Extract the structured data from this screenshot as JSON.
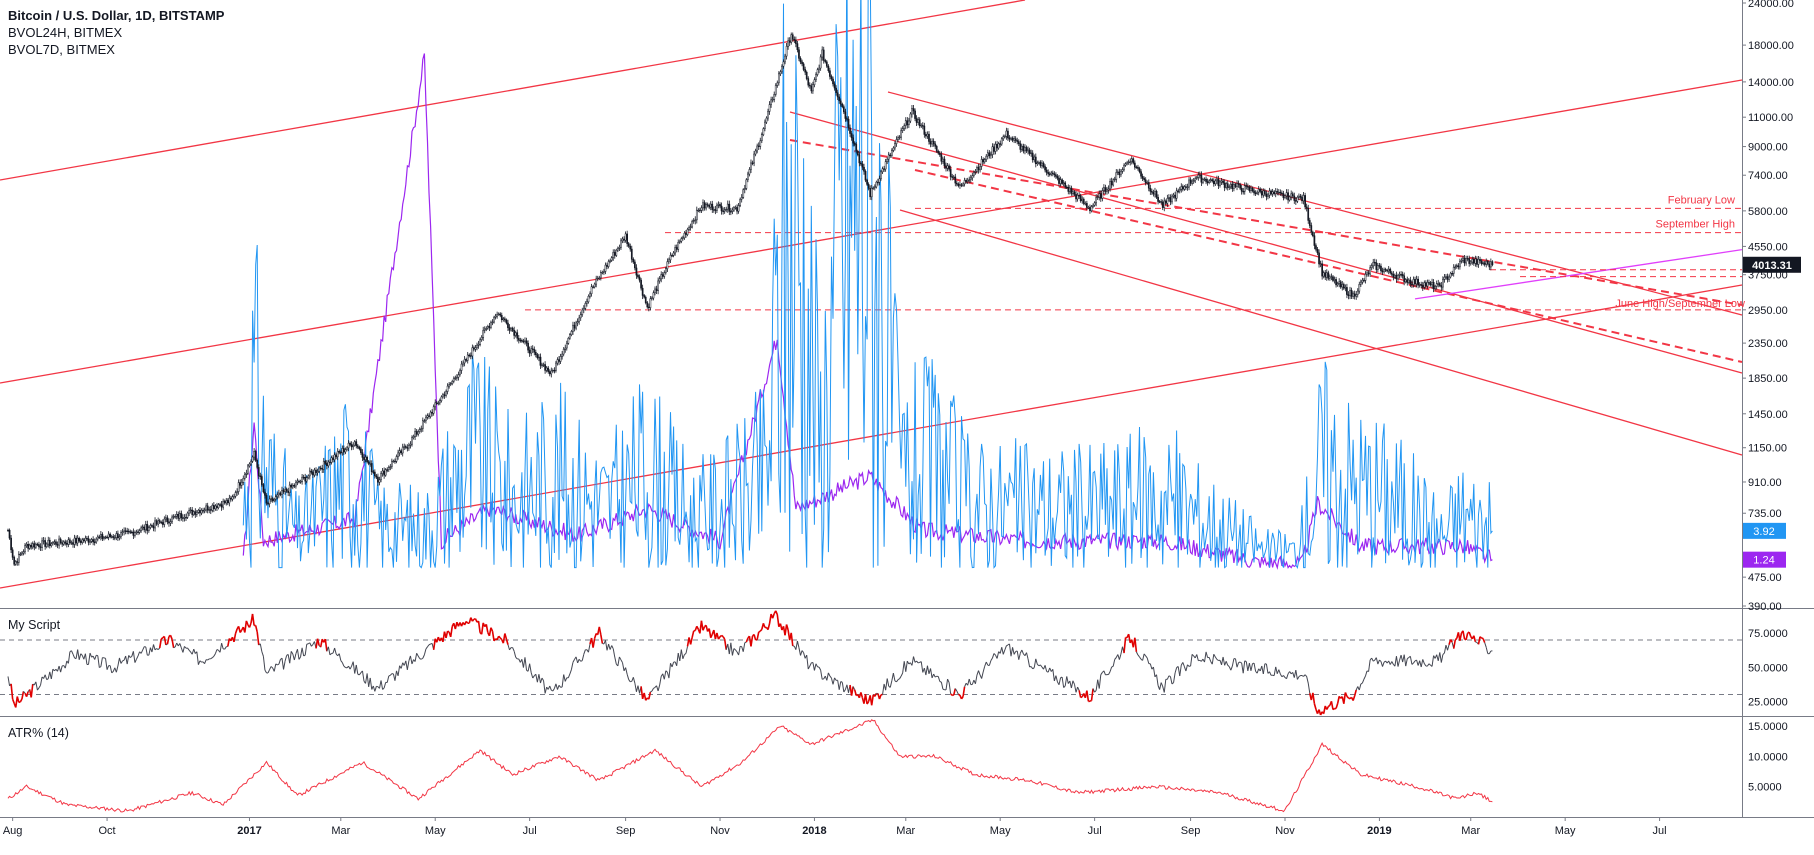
{
  "legend": {
    "main": "Bitcoin / U.S. Dollar, 1D, BITSTAMP",
    "line2": "BVOL24H, BITMEX",
    "line3": "BVOL7D, BITMEX"
  },
  "panes": {
    "script_title": "My Script",
    "atr_title": "ATR% (14)"
  },
  "colors": {
    "candle": "#131722",
    "channel": "#f23645",
    "bvol24h": "#2196f3",
    "bvol7d": "#9c27f0",
    "script": "#434651",
    "script_hot": "#e00000",
    "atr": "#f23645",
    "trend_magenta": "#e040fb"
  },
  "chart_data": [
    {
      "type": "candlestick",
      "pane": "price",
      "scale": "log",
      "ylim": [
        390,
        24000
      ],
      "y_ticks": [
        "24000.00",
        "18000.00",
        "14000.00",
        "11000.00",
        "9000.00",
        "7400.00",
        "5800.00",
        "4550.00",
        "3750.00",
        "2950.00",
        "2350.00",
        "1850.00",
        "1450.00",
        "1150.00",
        "910.00",
        "735.00",
        "475.00",
        "390.00"
      ],
      "x_ticks": [
        "Aug",
        "Oct",
        "2017",
        "Mar",
        "May",
        "Jul",
        "Sep",
        "Nov",
        "2018",
        "Mar",
        "May",
        "Jul",
        "Sep",
        "Nov",
        "2019",
        "Mar",
        "May",
        "Jul"
      ],
      "last_price_label": "4013.31",
      "series_keypoints": [
        {
          "x": "2016-07-29",
          "y": 655
        },
        {
          "x": "2016-08-02",
          "y": 520
        },
        {
          "x": "2016-08-10",
          "y": 590
        },
        {
          "x": "2016-09-15",
          "y": 610
        },
        {
          "x": "2016-10-15",
          "y": 640
        },
        {
          "x": "2016-11-20",
          "y": 730
        },
        {
          "x": "2016-12-20",
          "y": 800
        },
        {
          "x": "2017-01-04",
          "y": 1100
        },
        {
          "x": "2017-01-12",
          "y": 780
        },
        {
          "x": "2017-02-15",
          "y": 1000
        },
        {
          "x": "2017-03-10",
          "y": 1200
        },
        {
          "x": "2017-03-25",
          "y": 930
        },
        {
          "x": "2017-04-15",
          "y": 1200
        },
        {
          "x": "2017-05-10",
          "y": 1750
        },
        {
          "x": "2017-06-10",
          "y": 2900
        },
        {
          "x": "2017-07-15",
          "y": 1900
        },
        {
          "x": "2017-08-10",
          "y": 3400
        },
        {
          "x": "2017-09-01",
          "y": 4900
        },
        {
          "x": "2017-09-15",
          "y": 3000
        },
        {
          "x": "2017-10-01",
          "y": 4300
        },
        {
          "x": "2017-10-20",
          "y": 6000
        },
        {
          "x": "2017-11-12",
          "y": 5900
        },
        {
          "x": "2017-11-30",
          "y": 10500
        },
        {
          "x": "2017-12-17",
          "y": 19500
        },
        {
          "x": "2017-12-30",
          "y": 13000
        },
        {
          "x": "2018-01-06",
          "y": 17000
        },
        {
          "x": "2018-01-20",
          "y": 11500
        },
        {
          "x": "2018-02-06",
          "y": 6500
        },
        {
          "x": "2018-03-05",
          "y": 11400
        },
        {
          "x": "2018-04-05",
          "y": 6800
        },
        {
          "x": "2018-05-05",
          "y": 9800
        },
        {
          "x": "2018-06-28",
          "y": 5900
        },
        {
          "x": "2018-07-24",
          "y": 8300
        },
        {
          "x": "2018-08-14",
          "y": 6000
        },
        {
          "x": "2018-09-04",
          "y": 7300
        },
        {
          "x": "2018-10-15",
          "y": 6600
        },
        {
          "x": "2018-11-13",
          "y": 6300
        },
        {
          "x": "2018-11-25",
          "y": 3800
        },
        {
          "x": "2018-12-15",
          "y": 3250
        },
        {
          "x": "2018-12-28",
          "y": 4000
        },
        {
          "x": "2019-01-20",
          "y": 3600
        },
        {
          "x": "2019-02-08",
          "y": 3450
        },
        {
          "x": "2019-02-24",
          "y": 4150
        },
        {
          "x": "2019-03-15",
          "y": 4013.31
        }
      ],
      "horizontal_levels": [
        {
          "label": "February Low",
          "y": 5900
        },
        {
          "label": "September High",
          "y": 5000
        },
        {
          "label": "June High/September Low",
          "y": 2950
        },
        {
          "label": "",
          "y": 3880
        },
        {
          "label": "",
          "y": 3700
        }
      ]
    },
    {
      "type": "line",
      "pane": "price",
      "scale": "percent",
      "last_value_label": "3.92",
      "values": [
        {
          "x": "2016-12-28",
          "y": 5.0
        },
        {
          "x": "2017-01-04",
          "y": 17.0
        },
        {
          "x": "2017-01-12",
          "y": 9.0
        },
        {
          "x": "2017-02-01",
          "y": 3.5
        },
        {
          "x": "2017-03-10",
          "y": 9.5
        },
        {
          "x": "2017-03-25",
          "y": 4.5
        },
        {
          "x": "2017-04-25",
          "y": 4.0
        },
        {
          "x": "2017-05-25",
          "y": 11.0
        },
        {
          "x": "2017-06-20",
          "y": 7.0
        },
        {
          "x": "2017-07-17",
          "y": 9.0
        },
        {
          "x": "2017-08-20",
          "y": 6.0
        },
        {
          "x": "2017-09-15",
          "y": 9.5
        },
        {
          "x": "2017-10-15",
          "y": 5.0
        },
        {
          "x": "2017-11-15",
          "y": 7.0
        },
        {
          "x": "2017-12-01",
          "y": 9.0
        },
        {
          "x": "2017-12-10",
          "y": 26.0
        },
        {
          "x": "2017-12-22",
          "y": 31.0
        },
        {
          "x": "2018-01-05",
          "y": 12.0
        },
        {
          "x": "2018-01-18",
          "y": 31.0
        },
        {
          "x": "2018-02-06",
          "y": 37.0
        },
        {
          "x": "2018-02-25",
          "y": 9.0
        },
        {
          "x": "2018-03-20",
          "y": 10.0
        },
        {
          "x": "2018-04-10",
          "y": 6.5
        },
        {
          "x": "2018-05-15",
          "y": 6.0
        },
        {
          "x": "2018-06-25",
          "y": 6.0
        },
        {
          "x": "2018-08-15",
          "y": 7.0
        },
        {
          "x": "2018-10-20",
          "y": 2.0
        },
        {
          "x": "2018-11-10",
          "y": 2.0
        },
        {
          "x": "2018-11-25",
          "y": 10.5
        },
        {
          "x": "2018-12-10",
          "y": 8.5
        },
        {
          "x": "2019-01-10",
          "y": 7.0
        },
        {
          "x": "2019-02-10",
          "y": 3.5
        },
        {
          "x": "2019-02-24",
          "y": 5.5
        },
        {
          "x": "2019-03-15",
          "y": 3.92
        }
      ]
    },
    {
      "type": "line",
      "pane": "price",
      "scale": "percent",
      "last_value_label": "1.24",
      "values": [
        {
          "x": "2016-12-28",
          "y": 1.0
        },
        {
          "x": "2017-01-04",
          "y": 14.0
        },
        {
          "x": "2017-01-10",
          "y": 3.0
        },
        {
          "x": "2017-03-10",
          "y": 5.0
        },
        {
          "x": "2017-04-24",
          "y": 48.0
        },
        {
          "x": "2017-05-05",
          "y": 3.0
        },
        {
          "x": "2017-06-05",
          "y": 6.0
        },
        {
          "x": "2017-08-01",
          "y": 3.5
        },
        {
          "x": "2017-09-15",
          "y": 6.0
        },
        {
          "x": "2017-11-01",
          "y": 3.0
        },
        {
          "x": "2017-12-08",
          "y": 22.0
        },
        {
          "x": "2017-12-20",
          "y": 6.0
        },
        {
          "x": "2018-02-06",
          "y": 9.0
        },
        {
          "x": "2018-03-10",
          "y": 4.0
        },
        {
          "x": "2018-05-15",
          "y": 3.0
        },
        {
          "x": "2018-08-15",
          "y": 3.0
        },
        {
          "x": "2018-10-15",
          "y": 1.0
        },
        {
          "x": "2018-11-12",
          "y": 0.8
        },
        {
          "x": "2018-11-22",
          "y": 6.5
        },
        {
          "x": "2018-12-20",
          "y": 2.5
        },
        {
          "x": "2019-02-24",
          "y": 2.5
        },
        {
          "x": "2019-03-15",
          "y": 1.24
        }
      ]
    },
    {
      "type": "line",
      "pane": "oscillator",
      "ylim": [
        15,
        92
      ],
      "y_ticks": [
        "75.0000",
        "50.0000",
        "25.0000"
      ],
      "levels": [
        70,
        30
      ],
      "values": [
        {
          "x": "2016-07-29",
          "y": 45
        },
        {
          "x": "2016-08-02",
          "y": 22
        },
        {
          "x": "2016-09-10",
          "y": 60
        },
        {
          "x": "2016-10-05",
          "y": 50
        },
        {
          "x": "2016-11-10",
          "y": 70
        },
        {
          "x": "2016-12-01",
          "y": 55
        },
        {
          "x": "2017-01-04",
          "y": 85
        },
        {
          "x": "2017-01-12",
          "y": 45
        },
        {
          "x": "2017-02-15",
          "y": 70
        },
        {
          "x": "2017-03-25",
          "y": 35
        },
        {
          "x": "2017-05-20",
          "y": 85
        },
        {
          "x": "2017-06-15",
          "y": 70
        },
        {
          "x": "2017-07-15",
          "y": 30
        },
        {
          "x": "2017-08-15",
          "y": 75
        },
        {
          "x": "2017-09-15",
          "y": 25
        },
        {
          "x": "2017-10-20",
          "y": 80
        },
        {
          "x": "2017-11-12",
          "y": 60
        },
        {
          "x": "2017-12-07",
          "y": 88
        },
        {
          "x": "2017-12-30",
          "y": 50
        },
        {
          "x": "2018-02-06",
          "y": 25
        },
        {
          "x": "2018-03-05",
          "y": 55
        },
        {
          "x": "2018-04-05",
          "y": 30
        },
        {
          "x": "2018-05-05",
          "y": 65
        },
        {
          "x": "2018-06-28",
          "y": 28
        },
        {
          "x": "2018-07-24",
          "y": 72
        },
        {
          "x": "2018-08-14",
          "y": 35
        },
        {
          "x": "2018-09-04",
          "y": 58
        },
        {
          "x": "2018-10-15",
          "y": 48
        },
        {
          "x": "2018-11-13",
          "y": 45
        },
        {
          "x": "2018-11-22",
          "y": 18
        },
        {
          "x": "2018-12-15",
          "y": 30
        },
        {
          "x": "2018-12-28",
          "y": 55
        },
        {
          "x": "2019-01-20",
          "y": 55
        },
        {
          "x": "2019-02-08",
          "y": 55
        },
        {
          "x": "2019-02-24",
          "y": 76
        },
        {
          "x": "2019-03-15",
          "y": 62
        }
      ]
    },
    {
      "type": "line",
      "pane": "atr",
      "ylim": [
        0,
        16.5
      ],
      "y_ticks": [
        "15.0000",
        "10.0000",
        "5.0000"
      ],
      "values": [
        {
          "x": "2016-07-29",
          "y": 3
        },
        {
          "x": "2016-08-10",
          "y": 5
        },
        {
          "x": "2016-09-05",
          "y": 2
        },
        {
          "x": "2016-10-15",
          "y": 1
        },
        {
          "x": "2016-11-25",
          "y": 4
        },
        {
          "x": "2016-12-15",
          "y": 2
        },
        {
          "x": "2017-01-12",
          "y": 9
        },
        {
          "x": "2017-02-01",
          "y": 3.5
        },
        {
          "x": "2017-03-15",
          "y": 9
        },
        {
          "x": "2017-04-20",
          "y": 3
        },
        {
          "x": "2017-05-30",
          "y": 11
        },
        {
          "x": "2017-06-20",
          "y": 7
        },
        {
          "x": "2017-07-20",
          "y": 10
        },
        {
          "x": "2017-08-15",
          "y": 6
        },
        {
          "x": "2017-09-20",
          "y": 11
        },
        {
          "x": "2017-10-20",
          "y": 5
        },
        {
          "x": "2017-11-15",
          "y": 9
        },
        {
          "x": "2017-12-10",
          "y": 15
        },
        {
          "x": "2017-12-30",
          "y": 12
        },
        {
          "x": "2018-02-08",
          "y": 16
        },
        {
          "x": "2018-02-25",
          "y": 10
        },
        {
          "x": "2018-03-20",
          "y": 10
        },
        {
          "x": "2018-04-15",
          "y": 7
        },
        {
          "x": "2018-05-20",
          "y": 6
        },
        {
          "x": "2018-06-20",
          "y": 4
        },
        {
          "x": "2018-08-10",
          "y": 5
        },
        {
          "x": "2018-09-20",
          "y": 4
        },
        {
          "x": "2018-11-01",
          "y": 1
        },
        {
          "x": "2018-11-25",
          "y": 12
        },
        {
          "x": "2018-12-20",
          "y": 7
        },
        {
          "x": "2019-01-25",
          "y": 5
        },
        {
          "x": "2019-02-20",
          "y": 3
        },
        {
          "x": "2019-03-05",
          "y": 4
        },
        {
          "x": "2019-03-15",
          "y": 2.5
        }
      ]
    }
  ]
}
